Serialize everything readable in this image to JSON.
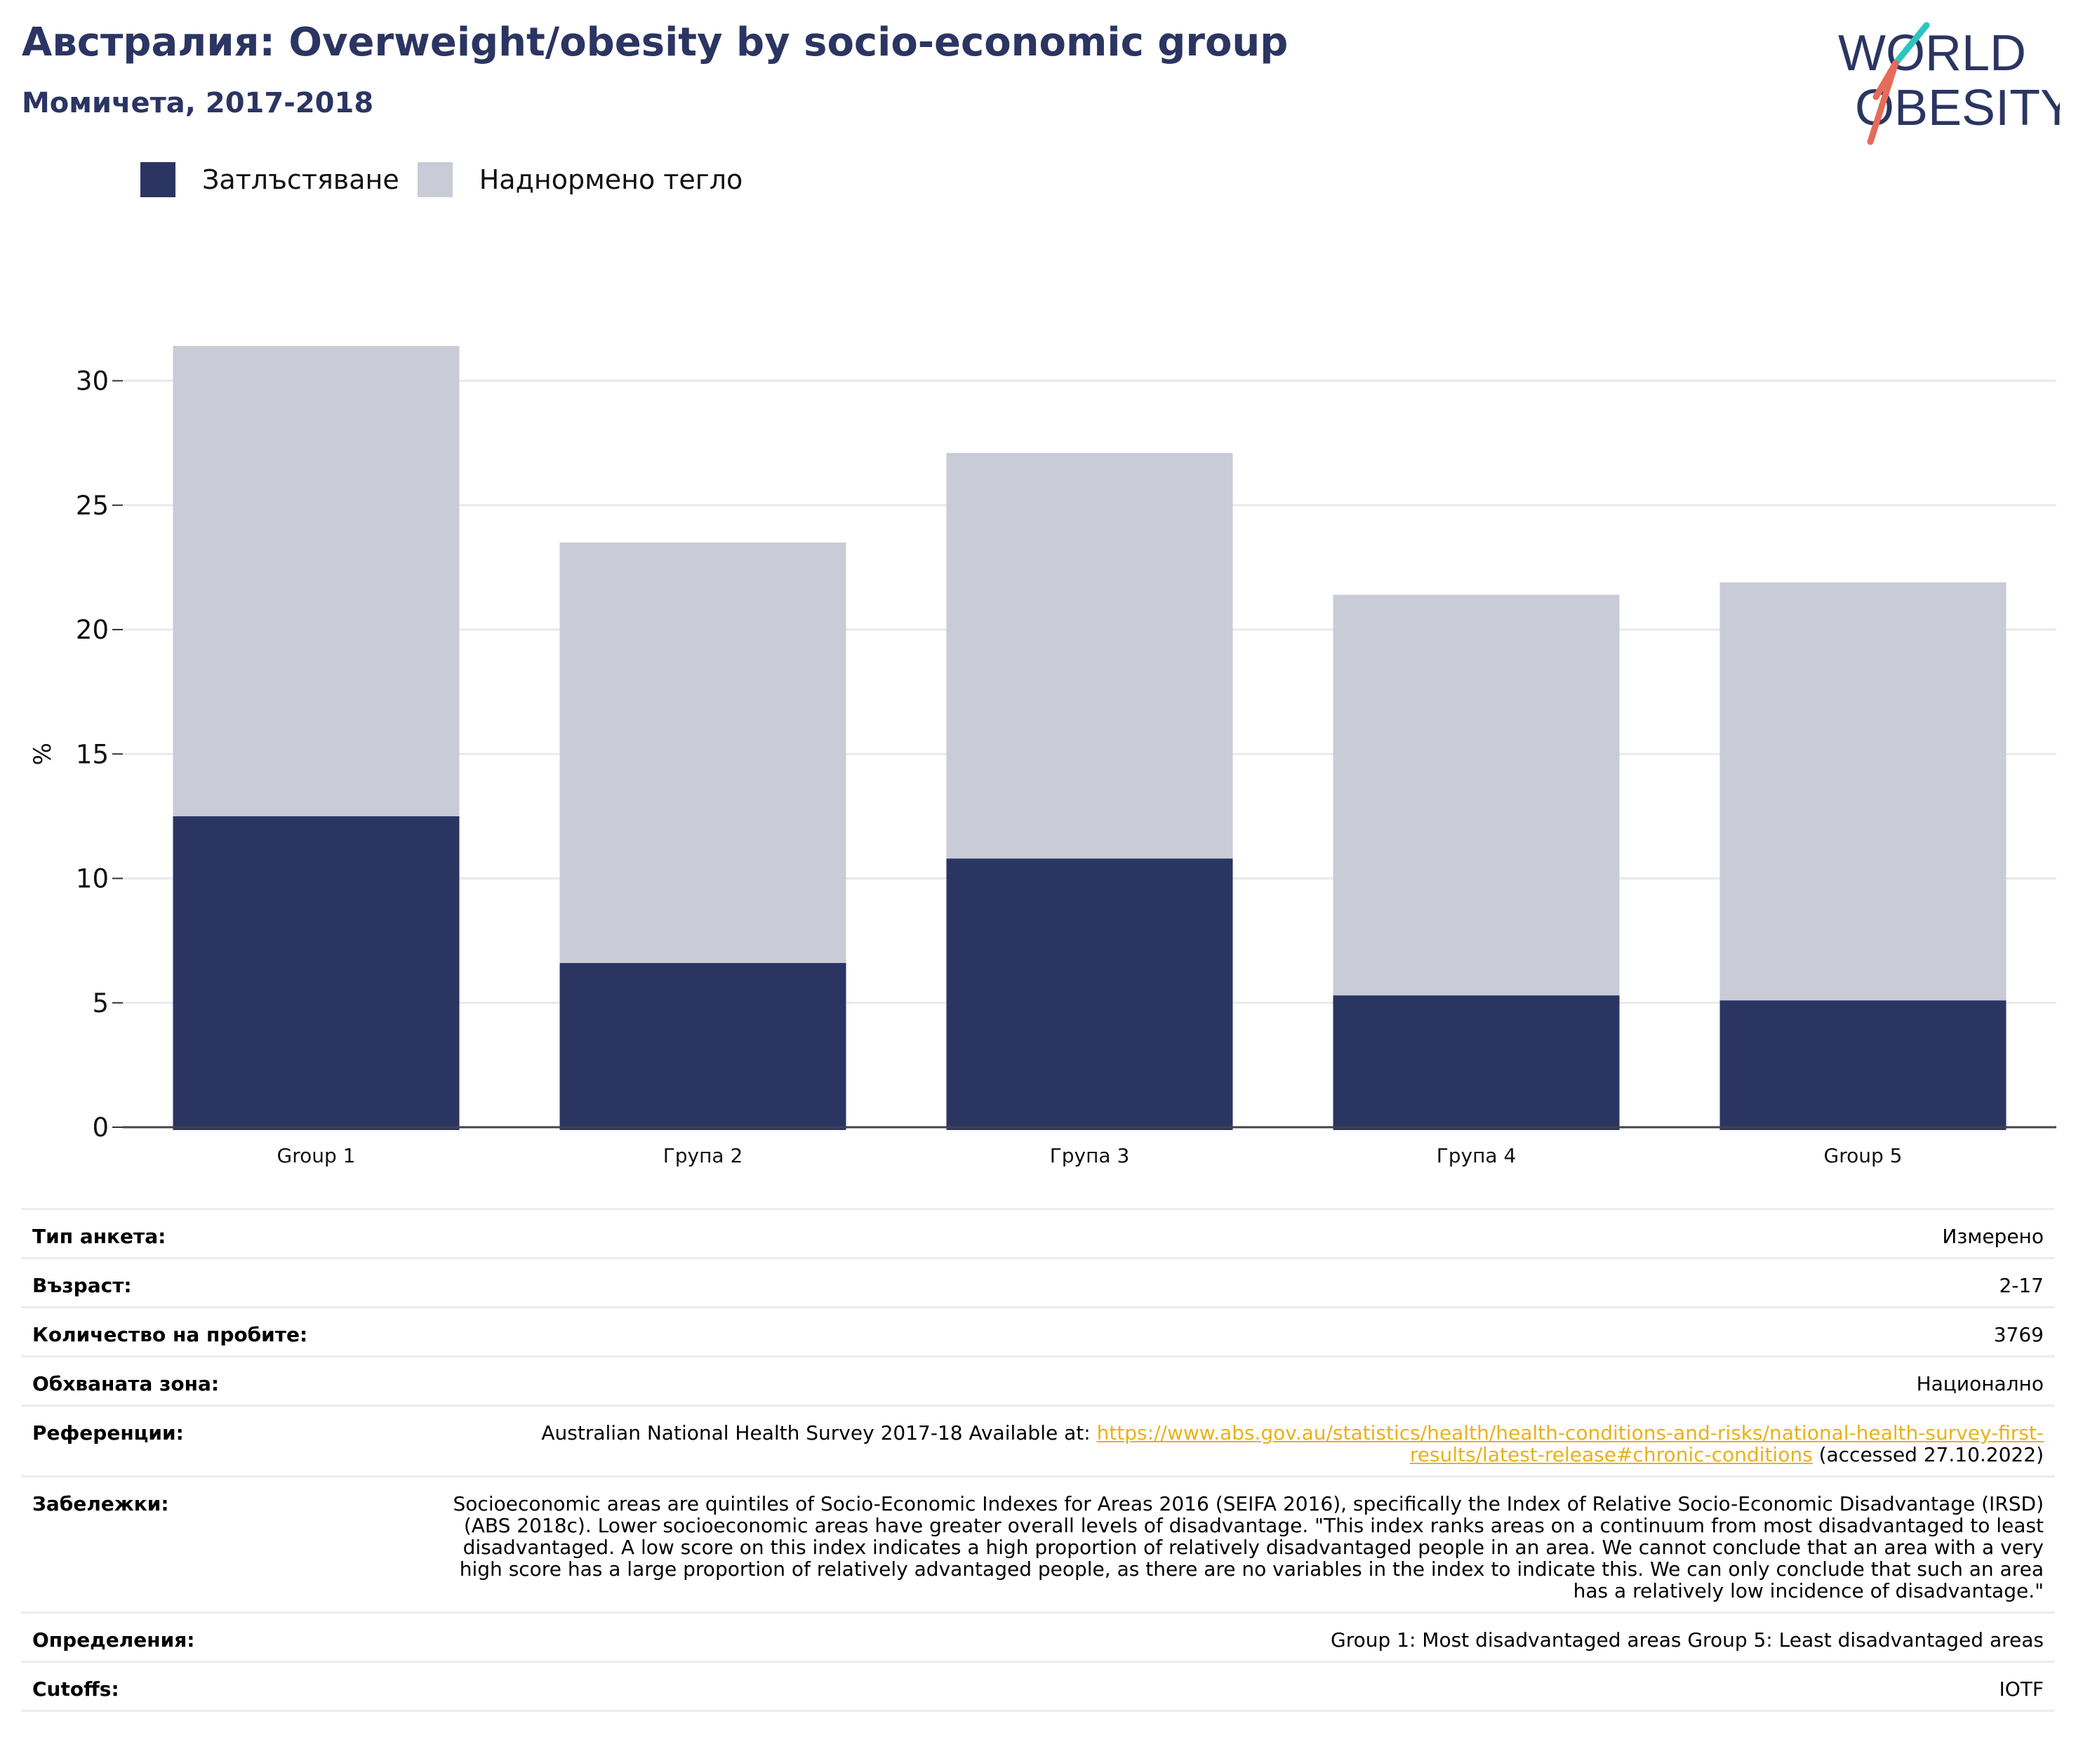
{
  "header": {
    "title": "Австралия: Overweight/obesity by socio-economic group",
    "subtitle": "Момичета, 2017-2018"
  },
  "logo": {
    "line1": "WORLD",
    "line2": "OBESITY",
    "colors": {
      "text": "#2b3562",
      "slash_top": "#2ec4c0",
      "slash_bottom": "#e56b5a"
    }
  },
  "legend": [
    {
      "label": "Затлъстяване",
      "color": "#2b3562"
    },
    {
      "label": "Наднормено тегло",
      "color": "#c9cbd7"
    }
  ],
  "chart_data": {
    "type": "bar",
    "stacked": true,
    "categories": [
      "Group 1",
      "Група 2",
      "Група 3",
      "Група 4",
      "Group 5"
    ],
    "series": [
      {
        "name": "Затлъстяване",
        "color": "#2b3562",
        "values": [
          12.5,
          6.6,
          10.8,
          5.3,
          5.1
        ]
      },
      {
        "name": "Наднормено тегло",
        "color": "#c9cbd7",
        "values": [
          18.9,
          16.9,
          16.3,
          16.1,
          16.8
        ]
      }
    ],
    "ylabel": "%",
    "ylim": [
      0,
      32
    ],
    "yticks": [
      0,
      5,
      10,
      15,
      20,
      25,
      30
    ],
    "grid": true,
    "legend_position": "top-left"
  },
  "meta": [
    {
      "label": "Тип анкета:",
      "value": "Измерено"
    },
    {
      "label": "Възраст:",
      "value": "2-17"
    },
    {
      "label": "Количество на пробите:",
      "value": "3769"
    },
    {
      "label": "Обхваната зона:",
      "value": "Национално"
    },
    {
      "label": "Референции:",
      "value_prefix": "Australian National Health Survey 2017-18 Available at: ",
      "link": "https://www.abs.gov.au/statistics/health/health-conditions-and-risks/national-health-survey-first-results/latest-release#chronic-conditions",
      "value_suffix": " (accessed 27.10.2022)"
    },
    {
      "label": "Забележки:",
      "value": "Socioeconomic areas are quintiles of Socio-Economic Indexes for Areas 2016 (SEIFA 2016), specifically the Index of Relative Socio-Economic Disadvantage (IRSD) (ABS 2018c). Lower socioeconomic areas have greater overall levels of disadvantage. \"This index ranks areas on a continuum from most disadvantaged to least disadvantaged. A low score on this index indicates a high proportion of relatively disadvantaged people in an area. We cannot conclude that an area with a very high score has a large proportion of relatively advantaged people, as there are no variables in the index to indicate this. We can only conclude that such an area has a relatively low incidence of disadvantage.\""
    },
    {
      "label": "Определения:",
      "value": "Group 1: Most disadvantaged areas Group 5: Least disadvantaged areas"
    },
    {
      "label": "Cutoffs:",
      "value": "IOTF"
    }
  ]
}
